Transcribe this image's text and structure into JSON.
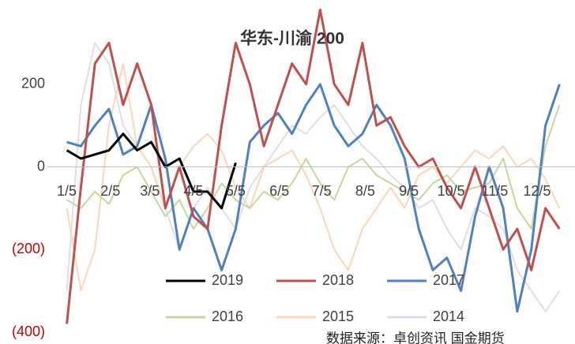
{
  "chart_data": {
    "type": "line",
    "title": "华东-川渝 200",
    "source": "数据来源：卓创资讯 国金期货",
    "x": [
      5,
      15,
      25,
      35,
      45,
      55,
      65,
      75,
      85,
      95,
      105,
      115,
      125,
      135,
      145,
      155,
      165,
      175,
      185,
      195,
      205,
      215,
      225,
      235,
      245,
      255,
      265,
      275,
      285,
      295,
      305,
      315,
      325,
      335,
      345,
      355
    ],
    "xlim": [
      -20,
      366
    ],
    "xticks": [
      {
        "value": 5,
        "label": "1/5"
      },
      {
        "value": 36,
        "label": "2/5"
      },
      {
        "value": 64,
        "label": "3/5"
      },
      {
        "value": 95,
        "label": "4/5"
      },
      {
        "value": 125,
        "label": "5/5"
      },
      {
        "value": 156,
        "label": "6/5"
      },
      {
        "value": 186,
        "label": "7/5"
      },
      {
        "value": 217,
        "label": "8/5"
      },
      {
        "value": 248,
        "label": "9/5"
      },
      {
        "value": 278,
        "label": "10/5"
      },
      {
        "value": 309,
        "label": "11/5"
      },
      {
        "value": 339,
        "label": "12/5"
      }
    ],
    "ylim": [
      -400,
      400
    ],
    "yticks": [
      {
        "value": -400,
        "label": "(400)"
      },
      {
        "value": -200,
        "label": "(200)"
      },
      0,
      200
    ],
    "negative_tick_color": "#c00000",
    "legend": "bottom",
    "series": [
      {
        "name": "2019",
        "color": "#000000",
        "width": 3,
        "values": [
          40,
          20,
          30,
          40,
          80,
          40,
          60,
          0,
          20,
          -60,
          -60,
          -100,
          10,
          null,
          null,
          null,
          null,
          null,
          null,
          null,
          null,
          null,
          null,
          null,
          null,
          null,
          null,
          null,
          null,
          null,
          null,
          null,
          null,
          null,
          null,
          null
        ]
      },
      {
        "name": "2018",
        "color": "#c0504d",
        "width": 3,
        "values": [
          -380,
          -50,
          250,
          300,
          150,
          250,
          150,
          -100,
          0,
          -120,
          -150,
          100,
          300,
          200,
          50,
          150,
          250,
          200,
          380,
          200,
          150,
          300,
          100,
          120,
          50,
          0,
          20,
          -50,
          -100,
          0,
          -100,
          -200,
          -150,
          -250,
          -100,
          -150
        ]
      },
      {
        "name": "2017",
        "color": "#4f81bd",
        "width": 3,
        "values": [
          60,
          50,
          100,
          140,
          30,
          50,
          150,
          20,
          -200,
          -100,
          -150,
          -250,
          -150,
          60,
          100,
          130,
          80,
          150,
          200,
          100,
          50,
          80,
          150,
          100,
          20,
          -150,
          -250,
          -220,
          -300,
          -120,
          0,
          -100,
          -350,
          -200,
          100,
          200
        ]
      },
      {
        "name": "2016",
        "color": "#c4d79b",
        "width": 2,
        "values": [
          -80,
          -100,
          -60,
          -90,
          -20,
          0,
          -60,
          -120,
          -80,
          -150,
          -100,
          -40,
          -80,
          -100,
          -60,
          -80,
          -40,
          20,
          -40,
          -80,
          0,
          20,
          -20,
          -40,
          -60,
          -80,
          -40,
          -20,
          -60,
          -50,
          -40,
          20,
          -100,
          -150,
          50,
          150
        ]
      },
      {
        "name": "2015",
        "color": "#fcd5b4",
        "width": 2,
        "values": [
          -100,
          -300,
          -200,
          100,
          250,
          50,
          0,
          -100,
          0,
          50,
          80,
          40,
          -50,
          -100,
          0,
          20,
          40,
          -20,
          -100,
          -200,
          -250,
          -150,
          -100,
          -50,
          -100,
          -20,
          0,
          -40,
          0,
          40,
          20,
          50,
          0,
          20,
          -30,
          -100
        ]
      },
      {
        "name": "2014",
        "color": "#e0dcea",
        "width": 2,
        "values": [
          -300,
          150,
          300,
          250,
          100,
          50,
          0,
          -100,
          -200,
          -100,
          -50,
          -100,
          -150,
          -50,
          0,
          50,
          100,
          80,
          120,
          150,
          100,
          50,
          20,
          -20,
          -50,
          -100,
          -80,
          -150,
          -200,
          -100,
          -120,
          -150,
          -250,
          -300,
          -350,
          -300
        ]
      }
    ]
  }
}
